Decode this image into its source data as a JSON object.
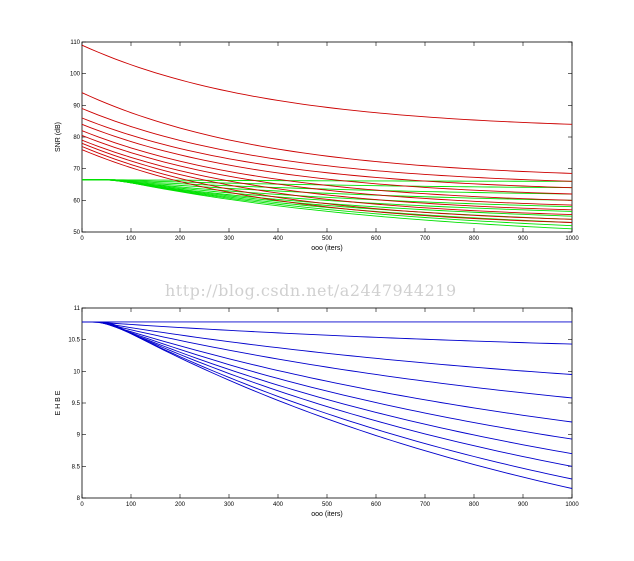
{
  "watermark": "http://blog.csdn.net/a2447944219",
  "chart_data": [
    {
      "type": "line",
      "xlabel": "ooo (iters)",
      "ylabel": "SNR (dB)",
      "xlim": [
        0,
        1000
      ],
      "ylim": [
        50,
        110
      ],
      "xticks": [
        0,
        100,
        200,
        300,
        400,
        500,
        600,
        700,
        800,
        900,
        1000
      ],
      "yticks": [
        50,
        60,
        70,
        80,
        90,
        100,
        110
      ],
      "grid": false,
      "colors": {
        "red": "#cc0000",
        "green": "#00e000"
      },
      "red_series": [
        {
          "start": 109,
          "end": 84
        },
        {
          "start": 94,
          "end": 68.5
        },
        {
          "start": 89,
          "end": 66
        },
        {
          "start": 86,
          "end": 64
        },
        {
          "start": 84,
          "end": 62
        },
        {
          "start": 82,
          "end": 60
        },
        {
          "start": 80.5,
          "end": 58.5
        },
        {
          "start": 79,
          "end": 57
        },
        {
          "start": 78,
          "end": 55.5
        },
        {
          "start": 77,
          "end": 54
        },
        {
          "start": 76,
          "end": 53
        }
      ],
      "green_series": [
        {
          "start": 66.5,
          "end": 66
        },
        {
          "start": 66.5,
          "end": 64
        },
        {
          "start": 66.5,
          "end": 62
        },
        {
          "start": 66.5,
          "end": 60
        },
        {
          "start": 66.5,
          "end": 58
        },
        {
          "start": 66.5,
          "end": 56.5
        },
        {
          "start": 66.5,
          "end": 55
        },
        {
          "start": 66.5,
          "end": 54
        },
        {
          "start": 66.5,
          "end": 53
        },
        {
          "start": 66.5,
          "end": 52
        },
        {
          "start": 66.5,
          "end": 51
        }
      ]
    },
    {
      "type": "line",
      "xlabel": "ooo (iters)",
      "ylabel": "E H B E",
      "xlim": [
        0,
        1000
      ],
      "ylim": [
        8,
        11
      ],
      "xticks": [
        0,
        100,
        200,
        300,
        400,
        500,
        600,
        700,
        800,
        900,
        1000
      ],
      "yticks": [
        8,
        8.5,
        9,
        9.5,
        10,
        10.5,
        11
      ],
      "ytick_labels": [
        "8",
        "8.5",
        "9",
        "9.5",
        "10",
        "10.5",
        "11"
      ],
      "grid": false,
      "colors": {
        "blue": "#0000cc"
      },
      "blue_series": [
        {
          "start": 10.78,
          "end": 10.78
        },
        {
          "start": 10.78,
          "end": 10.43
        },
        {
          "start": 10.78,
          "end": 9.95
        },
        {
          "start": 10.78,
          "end": 9.58
        },
        {
          "start": 10.78,
          "end": 9.2
        },
        {
          "start": 10.78,
          "end": 8.93
        },
        {
          "start": 10.78,
          "end": 8.7
        },
        {
          "start": 10.78,
          "end": 8.5
        },
        {
          "start": 10.78,
          "end": 8.3
        },
        {
          "start": 10.78,
          "end": 8.15
        }
      ]
    }
  ]
}
